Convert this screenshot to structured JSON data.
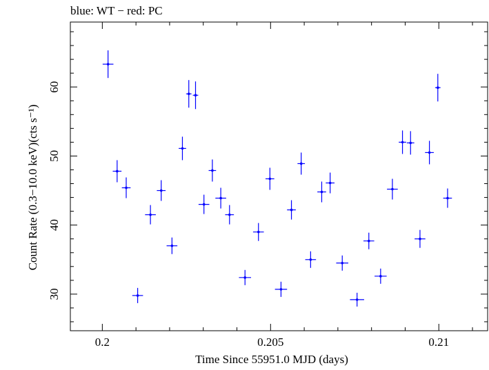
{
  "chart_data": {
    "type": "scatter",
    "title": "blue: WT − red: PC",
    "xlabel": "Time Since 55951.0 MJD (days)",
    "ylabel": "Count Rate (0.3−10.0 keV)(cts s⁻¹)",
    "xlim": [
      0.19905,
      0.21145
    ],
    "ylim": [
      24.7,
      69.4
    ],
    "x_ticks": [
      0.2,
      0.205,
      0.21
    ],
    "x_tick_labels": [
      "0.2",
      "0.205",
      "0.21"
    ],
    "y_ticks": [
      30,
      40,
      50,
      60
    ],
    "y_tick_labels": [
      "30",
      "40",
      "50",
      "60"
    ],
    "grid": false,
    "legend": "none",
    "series": [
      {
        "color": "#0000ff",
        "x": [
          0.20017,
          0.20044,
          0.20071,
          0.20105,
          0.20143,
          0.20175,
          0.20207,
          0.20238,
          0.20257,
          0.20277,
          0.20302,
          0.20327,
          0.20352,
          0.20378,
          0.20424,
          0.20464,
          0.20498,
          0.20531,
          0.20562,
          0.20591,
          0.20619,
          0.20652,
          0.20677,
          0.20713,
          0.20757,
          0.20792,
          0.20827,
          0.20862,
          0.20892,
          0.20916,
          0.20944,
          0.20972,
          0.20997,
          0.21026
        ],
        "y": [
          63.3,
          47.8,
          45.4,
          29.8,
          41.5,
          45.0,
          37.0,
          51.1,
          59.0,
          58.8,
          43.0,
          47.9,
          43.9,
          41.5,
          32.4,
          39.0,
          46.7,
          30.7,
          42.2,
          48.9,
          35.0,
          44.8,
          46.1,
          34.5,
          29.2,
          37.7,
          32.6,
          45.2,
          52.0,
          51.9,
          38.0,
          50.5,
          59.9,
          43.9
        ],
        "x_err": [
          0.00016,
          0.00013,
          0.00013,
          0.00016,
          0.00016,
          0.00013,
          0.00016,
          0.00011,
          8e-05,
          8e-05,
          0.00016,
          0.00011,
          0.00016,
          0.00013,
          0.00018,
          0.00016,
          0.00013,
          0.00018,
          0.00013,
          0.00011,
          0.00016,
          0.00013,
          0.00013,
          0.00018,
          0.00021,
          0.00016,
          0.00018,
          0.00016,
          0.00011,
          0.00011,
          0.00016,
          0.00013,
          8e-05,
          0.00013
        ],
        "y_err": [
          2.0,
          1.6,
          1.5,
          1.1,
          1.4,
          1.5,
          1.2,
          1.7,
          2.0,
          2.0,
          1.4,
          1.6,
          1.5,
          1.4,
          1.1,
          1.3,
          1.6,
          1.1,
          1.4,
          1.6,
          1.2,
          1.5,
          1.5,
          1.1,
          1.0,
          1.2,
          1.1,
          1.5,
          1.7,
          1.7,
          1.3,
          1.7,
          2.0,
          1.4
        ]
      }
    ]
  }
}
